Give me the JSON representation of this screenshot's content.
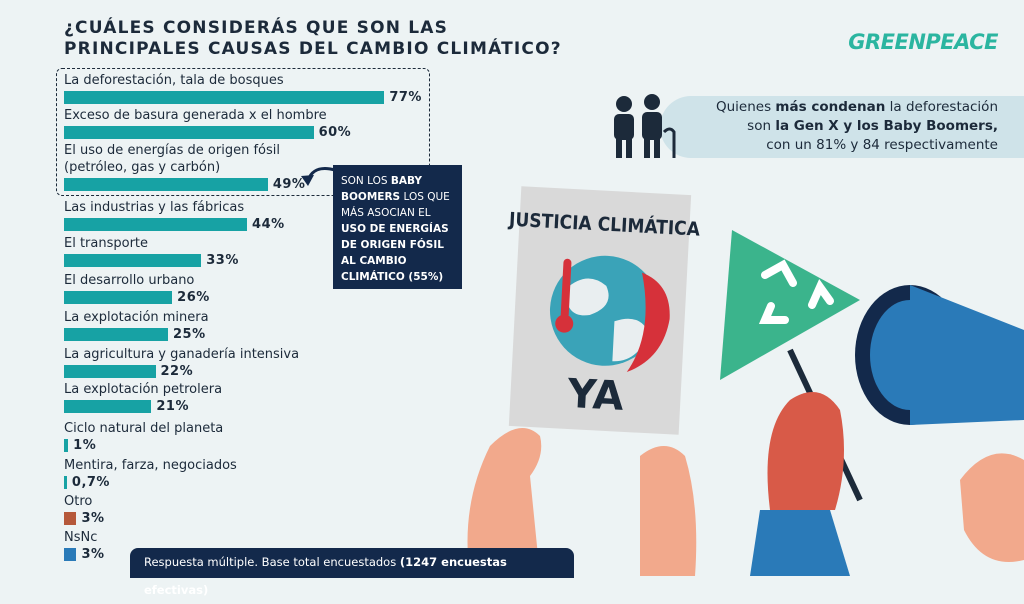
{
  "brand": "GREENPEACE",
  "chart_data": {
    "type": "bar",
    "orientation": "horizontal",
    "title": "¿CUÁLES CONSIDERÁS QUE SON LAS\nPRINCIPALES CAUSAS DEL CAMBIO CLIMÁTICO?",
    "categories": [
      "La deforestación, tala de bosques",
      "Exceso de basura generada x el hombre",
      "El uso de energías de origen fósil\n(petróleo, gas y carbón)",
      "Las industrias y las fábricas",
      "El transporte",
      "El desarrollo urbano",
      "La explotación minera",
      "La agricultura y ganadería intensiva",
      "La explotación petrolera",
      "Ciclo natural del planeta",
      "Mentira, farza, negociados",
      "Otro",
      "NsNc"
    ],
    "values": [
      77,
      60,
      49,
      44,
      33,
      26,
      25,
      22,
      21,
      1,
      0.7,
      3,
      3
    ],
    "value_labels": [
      "77%",
      "60%",
      "49%",
      "44%",
      "33%",
      "26%",
      "25%",
      "22%",
      "21%",
      "1%",
      "0,7%",
      "3%",
      "3%"
    ],
    "colors": [
      "#17a2a4",
      "#17a2a4",
      "#17a2a4",
      "#17a2a4",
      "#17a2a4",
      "#17a2a4",
      "#17a2a4",
      "#17a2a4",
      "#17a2a4",
      "#17a2a4",
      "#17a2a4",
      "#b5583a",
      "#2a7ab8"
    ],
    "xlim": [
      0,
      100
    ]
  },
  "callout": [
    {
      "text": "SON LOS ",
      "bold": false
    },
    {
      "text": "BABY BOOMERS",
      "bold": true
    },
    {
      "text": " LOS QUE MÁS ASOCIAN EL ",
      "bold": false
    },
    {
      "text": "USO DE ENERGÍAS DE ORIGEN FÓSIL AL CAMBIO CLIMÁTICO (55%)",
      "bold": true
    }
  ],
  "insight": [
    {
      "text": "Quienes ",
      "bold": false
    },
    {
      "text": "más condenan",
      "bold": true
    },
    {
      "text": " la deforestación\nson ",
      "bold": false
    },
    {
      "text": "la Gen X y los Baby Boomers,",
      "bold": true
    },
    {
      "text": "\ncon un 81% y 84 respectivamente",
      "bold": false
    }
  ],
  "footnote": [
    {
      "text": "Respuesta múltiple. Base total encuestados ",
      "bold": false
    },
    {
      "text": "(1247 encuestas efectivas)",
      "bold": true
    }
  ],
  "illustration": {
    "sign_title": "JUSTICIA CLIMÁTICA",
    "sign_text": "YA"
  }
}
